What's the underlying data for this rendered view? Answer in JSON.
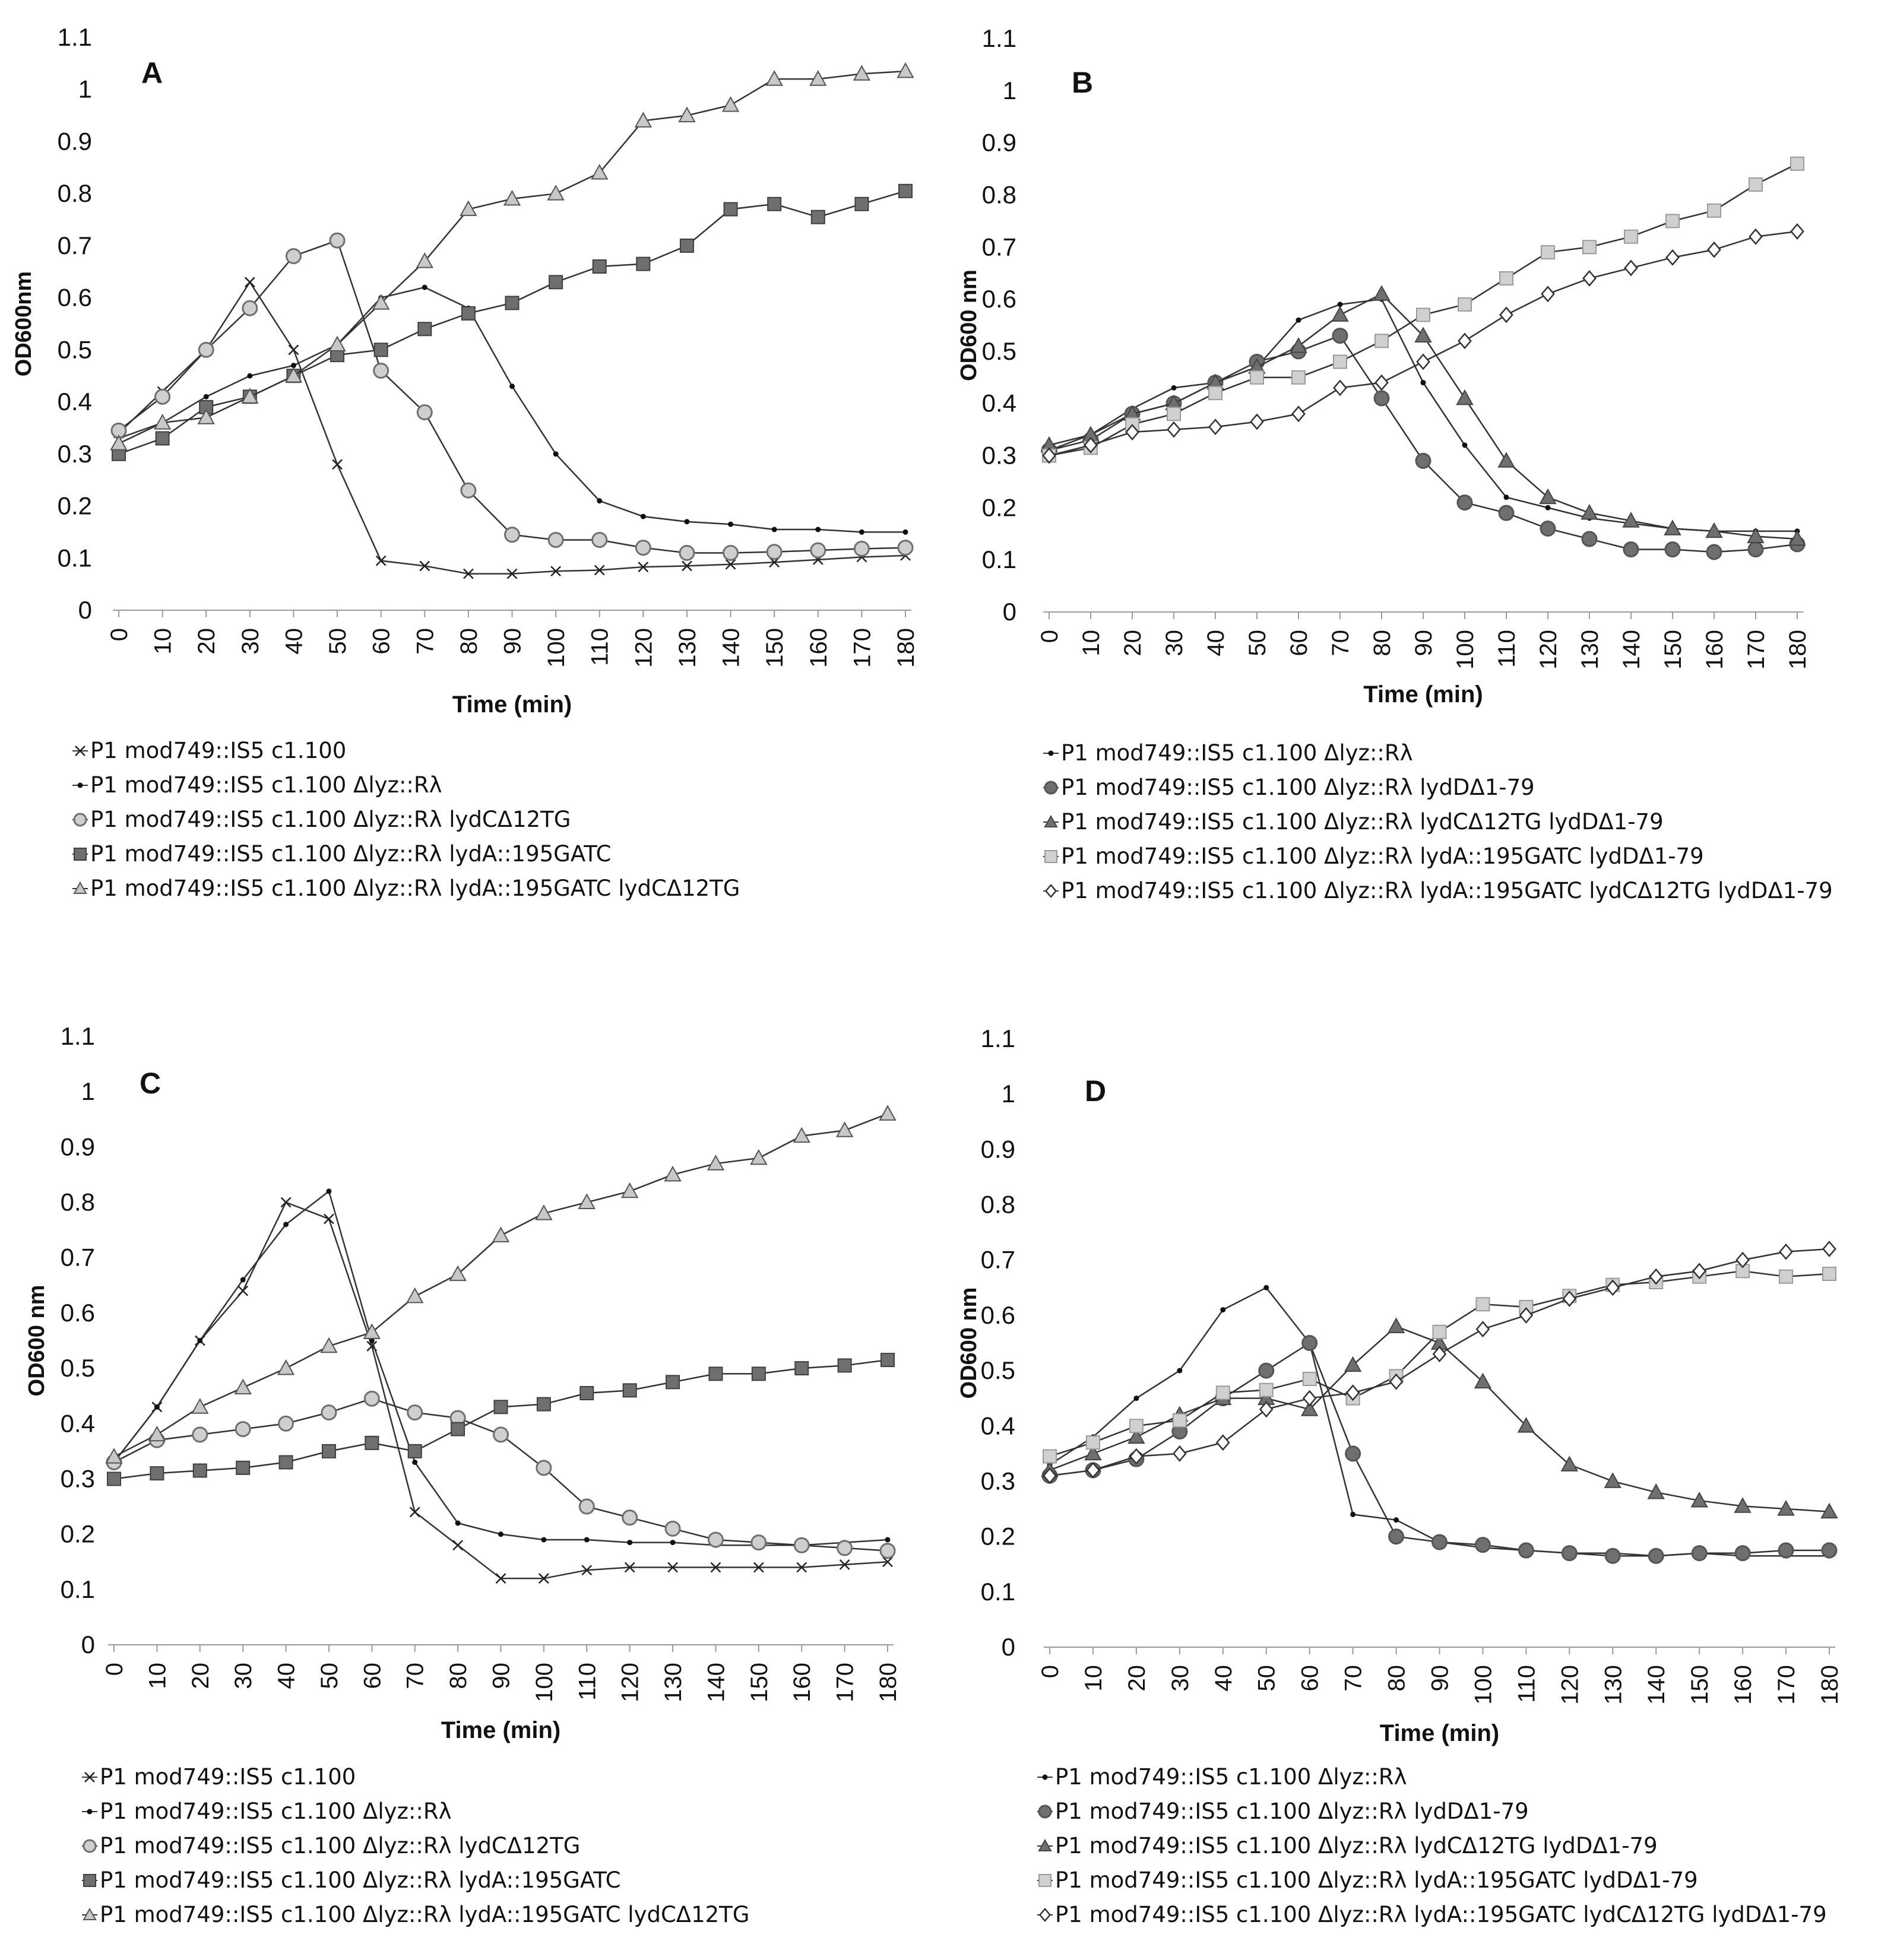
{
  "chart_data": [
    {
      "type": "line",
      "panel": "A",
      "xlabel": "Time (min)",
      "ylabel": "OD600nm",
      "ylim": [
        0,
        1.1
      ],
      "yticks": [
        "0",
        "0.1",
        "0.2",
        "0.3",
        "0.4",
        "0.5",
        "0.6",
        "0.7",
        "0.8",
        "0.9",
        "1",
        "1.1"
      ],
      "x": [
        0,
        10,
        20,
        30,
        40,
        50,
        60,
        70,
        80,
        90,
        100,
        110,
        120,
        130,
        140,
        150,
        160,
        170,
        180
      ],
      "xticks": [
        "0",
        "10",
        "20",
        "30",
        "40",
        "50",
        "60",
        "70",
        "80",
        "90",
        "100",
        "110",
        "120",
        "130",
        "140",
        "150",
        "160",
        "170",
        "180"
      ],
      "series": [
        {
          "name": "P1 mod749::IS5 c1.100",
          "marker": "x",
          "values": [
            0.34,
            0.42,
            0.5,
            0.63,
            0.5,
            0.28,
            0.095,
            0.085,
            0.07,
            0.07,
            0.075,
            0.077,
            0.083,
            0.085,
            0.088,
            0.092,
            0.097,
            0.102,
            0.105
          ]
        },
        {
          "name": "P1 mod749::IS5 c1.100  Δlyz::Rλ",
          "marker": "dot",
          "values": [
            0.33,
            0.36,
            0.41,
            0.45,
            0.47,
            0.51,
            0.6,
            0.62,
            0.58,
            0.43,
            0.3,
            0.21,
            0.18,
            0.17,
            0.165,
            0.155,
            0.155,
            0.15,
            0.15
          ]
        },
        {
          "name": "P1 mod749::IS5 c1.100 Δlyz::Rλ lydCΔ12TG",
          "marker": "circle",
          "values": [
            0.345,
            0.41,
            0.5,
            0.58,
            0.68,
            0.71,
            0.46,
            0.38,
            0.23,
            0.145,
            0.135,
            0.135,
            0.12,
            0.11,
            0.11,
            0.112,
            0.115,
            0.118,
            0.12
          ]
        },
        {
          "name": "P1 mod749::IS5 c1.100 Δlyz::Rλ lydA::195GATC",
          "marker": "square",
          "values": [
            0.3,
            0.33,
            0.39,
            0.41,
            0.45,
            0.49,
            0.5,
            0.54,
            0.57,
            0.59,
            0.63,
            0.66,
            0.665,
            0.7,
            0.77,
            0.78,
            0.755,
            0.78,
            0.805
          ]
        },
        {
          "name": "P1 mod749::IS5 c1.100 Δlyz::Rλ lydA::195GATC lydCΔ12TG",
          "marker": "triangle",
          "values": [
            0.32,
            0.36,
            0.37,
            0.41,
            0.45,
            0.51,
            0.59,
            0.67,
            0.77,
            0.79,
            0.8,
            0.84,
            0.94,
            0.95,
            0.97,
            1.02,
            1.02,
            1.03,
            1.035
          ]
        }
      ]
    },
    {
      "type": "line",
      "panel": "B",
      "xlabel": "Time (min)",
      "ylabel": "OD600 nm",
      "ylim": [
        0,
        1.1
      ],
      "yticks": [
        "0",
        "0.1",
        "0.2",
        "0.3",
        "0.4",
        "0.5",
        "0.6",
        "0.7",
        "0.8",
        "0.9",
        "1",
        "1.1"
      ],
      "x": [
        0,
        10,
        20,
        30,
        40,
        50,
        60,
        70,
        80,
        90,
        100,
        110,
        120,
        130,
        140,
        150,
        160,
        170,
        180
      ],
      "xticks": [
        "0",
        "10",
        "20",
        "30",
        "40",
        "50",
        "60",
        "70",
        "80",
        "90",
        "100",
        "110",
        "120",
        "130",
        "140",
        "150",
        "160",
        "170",
        "180"
      ],
      "series": [
        {
          "name": "P1 mod749::IS5 c1.100 Δlyz::Rλ",
          "marker": "dot",
          "values": [
            0.31,
            0.34,
            0.39,
            0.43,
            0.44,
            0.47,
            0.56,
            0.59,
            0.6,
            0.44,
            0.32,
            0.22,
            0.2,
            0.18,
            0.17,
            0.16,
            0.155,
            0.155,
            0.155
          ]
        },
        {
          "name": "P1 mod749::IS5 c1.100  Δlyz::Rλ lydDΔ1-79",
          "marker": "circle",
          "values": [
            0.31,
            0.33,
            0.38,
            0.4,
            0.44,
            0.48,
            0.5,
            0.53,
            0.41,
            0.29,
            0.21,
            0.19,
            0.16,
            0.14,
            0.12,
            0.12,
            0.115,
            0.12,
            0.13
          ]
        },
        {
          "name": "P1 mod749::IS5 c1.100 Δlyz::Rλ lydCΔ12TG lydDΔ1-79",
          "marker": "triangle",
          "values": [
            0.32,
            0.34,
            0.38,
            0.4,
            0.44,
            0.47,
            0.51,
            0.57,
            0.61,
            0.53,
            0.41,
            0.29,
            0.22,
            0.19,
            0.175,
            0.16,
            0.155,
            0.145,
            0.14
          ]
        },
        {
          "name": "P1 mod749::IS5 c1.100 Δlyz::Rλ lydA::195GATC lydDΔ1-79",
          "marker": "square",
          "values": [
            0.3,
            0.315,
            0.36,
            0.38,
            0.42,
            0.45,
            0.45,
            0.48,
            0.52,
            0.57,
            0.59,
            0.64,
            0.69,
            0.7,
            0.72,
            0.75,
            0.77,
            0.82,
            0.86
          ]
        },
        {
          "name": "P1 mod749::IS5 c1.100 Δlyz::Rλ lydA::195GATC lydCΔ12TG lydDΔ1-79",
          "marker": "diamond",
          "values": [
            0.3,
            0.32,
            0.345,
            0.35,
            0.355,
            0.365,
            0.38,
            0.43,
            0.44,
            0.48,
            0.52,
            0.57,
            0.61,
            0.64,
            0.66,
            0.68,
            0.695,
            0.72,
            0.73
          ]
        }
      ]
    },
    {
      "type": "line",
      "panel": "C",
      "xlabel": "Time (min)",
      "ylabel": "OD600 nm",
      "ylim": [
        0,
        1.1
      ],
      "yticks": [
        "0",
        "0.1",
        "0.2",
        "0.3",
        "0.4",
        "0.5",
        "0.6",
        "0.7",
        "0.8",
        "0.9",
        "1",
        "1.1"
      ],
      "x": [
        0,
        10,
        20,
        30,
        40,
        50,
        60,
        70,
        80,
        90,
        100,
        110,
        120,
        130,
        140,
        150,
        160,
        170,
        180
      ],
      "xticks": [
        "0",
        "10",
        "20",
        "30",
        "40",
        "50",
        "60",
        "70",
        "80",
        "90",
        "100",
        "110",
        "120",
        "130",
        "140",
        "150",
        "160",
        "170",
        "180"
      ],
      "series": [
        {
          "name": "P1 mod749::IS5 c1.100",
          "marker": "x",
          "values": [
            0.33,
            0.43,
            0.55,
            0.64,
            0.8,
            0.77,
            0.54,
            0.24,
            0.18,
            0.12,
            0.12,
            0.135,
            0.14,
            0.14,
            0.14,
            0.14,
            0.14,
            0.145,
            0.15
          ]
        },
        {
          "name": "P1 mod749::IS5 c1.100  Δlyz::Rλ",
          "marker": "dot",
          "values": [
            0.33,
            0.43,
            0.55,
            0.66,
            0.76,
            0.82,
            0.55,
            0.33,
            0.22,
            0.2,
            0.19,
            0.19,
            0.185,
            0.185,
            0.18,
            0.18,
            0.18,
            0.185,
            0.19
          ]
        },
        {
          "name": "P1 mod749::IS5 c1.100 Δlyz::Rλ lydCΔ12TG",
          "marker": "circle",
          "values": [
            0.33,
            0.37,
            0.38,
            0.39,
            0.4,
            0.42,
            0.445,
            0.42,
            0.41,
            0.38,
            0.32,
            0.25,
            0.23,
            0.21,
            0.19,
            0.185,
            0.18,
            0.175,
            0.17
          ]
        },
        {
          "name": "P1 mod749::IS5 c1.100 Δlyz::Rλ lydA::195GATC",
          "marker": "square",
          "values": [
            0.3,
            0.31,
            0.315,
            0.32,
            0.33,
            0.35,
            0.365,
            0.35,
            0.39,
            0.43,
            0.435,
            0.455,
            0.46,
            0.475,
            0.49,
            0.49,
            0.5,
            0.505,
            0.515
          ]
        },
        {
          "name": "P1 mod749::IS5 c1.100 Δlyz::Rλ lydA::195GATC lydCΔ12TG",
          "marker": "triangle",
          "values": [
            0.34,
            0.38,
            0.43,
            0.465,
            0.5,
            0.54,
            0.565,
            0.63,
            0.67,
            0.74,
            0.78,
            0.8,
            0.82,
            0.85,
            0.87,
            0.88,
            0.92,
            0.93,
            0.96
          ]
        }
      ]
    },
    {
      "type": "line",
      "panel": "D",
      "xlabel": "Time (min)",
      "ylabel": "OD600 nm",
      "ylim": [
        0,
        1.1
      ],
      "yticks": [
        "0",
        "0.1",
        "0.2",
        "0.3",
        "0.4",
        "0.5",
        "0.6",
        "0.7",
        "0.8",
        "0.9",
        "1",
        "1.1"
      ],
      "x": [
        0,
        10,
        20,
        30,
        40,
        50,
        60,
        70,
        80,
        90,
        100,
        110,
        120,
        130,
        140,
        150,
        160,
        170,
        180
      ],
      "xticks": [
        "0",
        "10",
        "20",
        "30",
        "40",
        "50",
        "60",
        "70",
        "80",
        "90",
        "100",
        "110",
        "120",
        "130",
        "140",
        "150",
        "160",
        "170",
        "180"
      ],
      "series": [
        {
          "name": "P1 mod749::IS5 c1.100 Δlyz::Rλ",
          "marker": "dot",
          "values": [
            0.33,
            0.38,
            0.45,
            0.5,
            0.61,
            0.65,
            0.55,
            0.24,
            0.23,
            0.19,
            0.18,
            0.175,
            0.17,
            0.17,
            0.165,
            0.17,
            0.165,
            0.165,
            0.165
          ]
        },
        {
          "name": "P1 mod749::IS5 c1.100  Δlyz::Rλ lydDΔ1-79",
          "marker": "circle",
          "values": [
            0.31,
            0.32,
            0.34,
            0.39,
            0.45,
            0.5,
            0.55,
            0.35,
            0.2,
            0.19,
            0.185,
            0.175,
            0.17,
            0.165,
            0.165,
            0.17,
            0.17,
            0.175,
            0.175
          ]
        },
        {
          "name": "P1 mod749::IS5 c1.100 Δlyz::Rλ lydCΔ12TG lydDΔ1-79",
          "marker": "triangle",
          "values": [
            0.32,
            0.35,
            0.38,
            0.42,
            0.45,
            0.45,
            0.43,
            0.51,
            0.58,
            0.55,
            0.48,
            0.4,
            0.33,
            0.3,
            0.28,
            0.265,
            0.255,
            0.25,
            0.245
          ]
        },
        {
          "name": "P1 mod749::IS5 c1.100 Δlyz::Rλ lydA::195GATC lydDΔ1-79",
          "marker": "square",
          "values": [
            0.345,
            0.37,
            0.4,
            0.41,
            0.46,
            0.465,
            0.485,
            0.45,
            0.49,
            0.57,
            0.62,
            0.615,
            0.635,
            0.655,
            0.66,
            0.67,
            0.68,
            0.67,
            0.675
          ]
        },
        {
          "name": "P1 mod749::IS5 c1.100 Δlyz::Rλ lydA::195GATC lydCΔ12TG lydDΔ1-79",
          "marker": "diamond",
          "values": [
            0.31,
            0.32,
            0.345,
            0.35,
            0.37,
            0.43,
            0.45,
            0.46,
            0.48,
            0.53,
            0.575,
            0.6,
            0.63,
            0.65,
            0.67,
            0.68,
            0.7,
            0.715,
            0.72
          ]
        }
      ]
    }
  ]
}
